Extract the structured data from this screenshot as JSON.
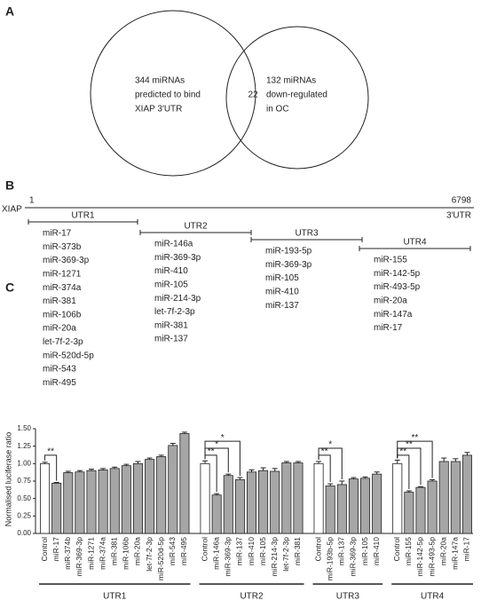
{
  "panel_a": {
    "label": "A",
    "left": [
      "344 miRNAs",
      "predicted to bind",
      "XIAP 3′UTR"
    ],
    "intersection": "22",
    "right": [
      "132 miRNAs",
      "down-regulated",
      "in OC"
    ]
  },
  "panel_b": {
    "label": "B",
    "gene": "XIAP",
    "start": "1",
    "end": "6798",
    "region": "3′UTR",
    "groups": [
      {
        "name": "UTR1",
        "mirnas": [
          "miR-17",
          "miR-373b",
          "miR-369-3p",
          "miR-1271",
          "miR-374a",
          "miR-381",
          "miR-106b",
          "miR-20a",
          "let-7f-2-3p",
          "miR-520d-5p",
          "miR-543",
          "miR-495"
        ]
      },
      {
        "name": "UTR2",
        "mirnas": [
          "miR-146a",
          "miR-369-3p",
          "miR-410",
          "miR-105",
          "miR-214-3p",
          "let-7f-2-3p",
          "miR-381",
          "miR-137"
        ]
      },
      {
        "name": "UTR3",
        "mirnas": [
          "miR-193-5p",
          "miR-369-3p",
          "miR-105",
          "miR-410",
          "miR-137"
        ]
      },
      {
        "name": "UTR4",
        "mirnas": [
          "miR-155",
          "miR-142-5p",
          "miR-493-5p",
          "miR-20a",
          "miR-147a",
          "miR-17"
        ]
      }
    ]
  },
  "chart_data": {
    "type": "bar",
    "panel_label": "C",
    "y_label": "Normalised luciferase ratio",
    "ylim": [
      0,
      1.5
    ],
    "yticks": [
      {
        "value": 0,
        "label": "0.00"
      },
      {
        "value": 0.25,
        "label": "0.25"
      },
      {
        "value": 0.5,
        "label": "0.50"
      },
      {
        "value": 0.75,
        "label": "0.75"
      },
      {
        "value": 1,
        "label": "1.00"
      },
      {
        "value": 1.25,
        "label": "1.25"
      },
      {
        "value": 1.5,
        "label": "1.50"
      }
    ],
    "control_color": "#ffffff",
    "color": "#a6a6a6",
    "groups": [
      {
        "name": "UTR1",
        "categories": [
          "Control",
          "miR-17",
          "miR-374b",
          "miR-369-3p",
          "miR-1271",
          "miR-374a",
          "miR-381",
          "miR-106b",
          "miR-20a",
          "let-7f-2-3p",
          "miR-520d-5p",
          "miR-543",
          "miR-495"
        ],
        "values": [
          1.0,
          0.72,
          0.87,
          0.88,
          0.9,
          0.91,
          0.93,
          0.97,
          1.0,
          1.06,
          1.1,
          1.26,
          1.43
        ],
        "errors": [
          0.02,
          0.01,
          0.02,
          0.02,
          0.02,
          0.02,
          0.02,
          0.02,
          0.03,
          0.02,
          0.02,
          0.03,
          0.02
        ],
        "significance": [
          null,
          "**",
          null,
          null,
          null,
          null,
          null,
          null,
          null,
          null,
          null,
          null,
          null
        ]
      },
      {
        "name": "UTR2",
        "categories": [
          "Control",
          "miR-146a",
          "miR-369-3p",
          "miR-137",
          "miR-410",
          "miR-105",
          "miR-214-3p",
          "let-7f-2-3p",
          "miR-381"
        ],
        "values": [
          1.0,
          0.55,
          0.83,
          0.77,
          0.88,
          0.9,
          0.89,
          1.01,
          1.01
        ],
        "errors": [
          0.04,
          0.02,
          0.02,
          0.03,
          0.03,
          0.04,
          0.04,
          0.02,
          0.02
        ],
        "significance": [
          null,
          "**",
          "*",
          "*",
          null,
          null,
          null,
          null,
          null
        ]
      },
      {
        "name": "UTR3",
        "categories": [
          "Control",
          "miR-193b-5p",
          "miR-137",
          "miR-369-3p",
          "miR-105",
          "miR-410"
        ],
        "values": [
          1.0,
          0.68,
          0.7,
          0.78,
          0.79,
          0.85
        ],
        "errors": [
          0.03,
          0.03,
          0.05,
          0.02,
          0.02,
          0.03
        ],
        "significance": [
          null,
          "**",
          "*",
          null,
          null,
          null
        ]
      },
      {
        "name": "UTR4",
        "categories": [
          "Control",
          "miR-155",
          "miR-142-5p",
          "miR-493-5p",
          "miR-20a",
          "miR-147a",
          "miR-17"
        ],
        "values": [
          1.0,
          0.59,
          0.66,
          0.75,
          1.03,
          1.03,
          1.12
        ],
        "errors": [
          0.05,
          0.02,
          0.01,
          0.02,
          0.05,
          0.04,
          0.04
        ],
        "significance": [
          null,
          "**",
          "**",
          "**",
          null,
          null,
          null
        ]
      }
    ]
  }
}
